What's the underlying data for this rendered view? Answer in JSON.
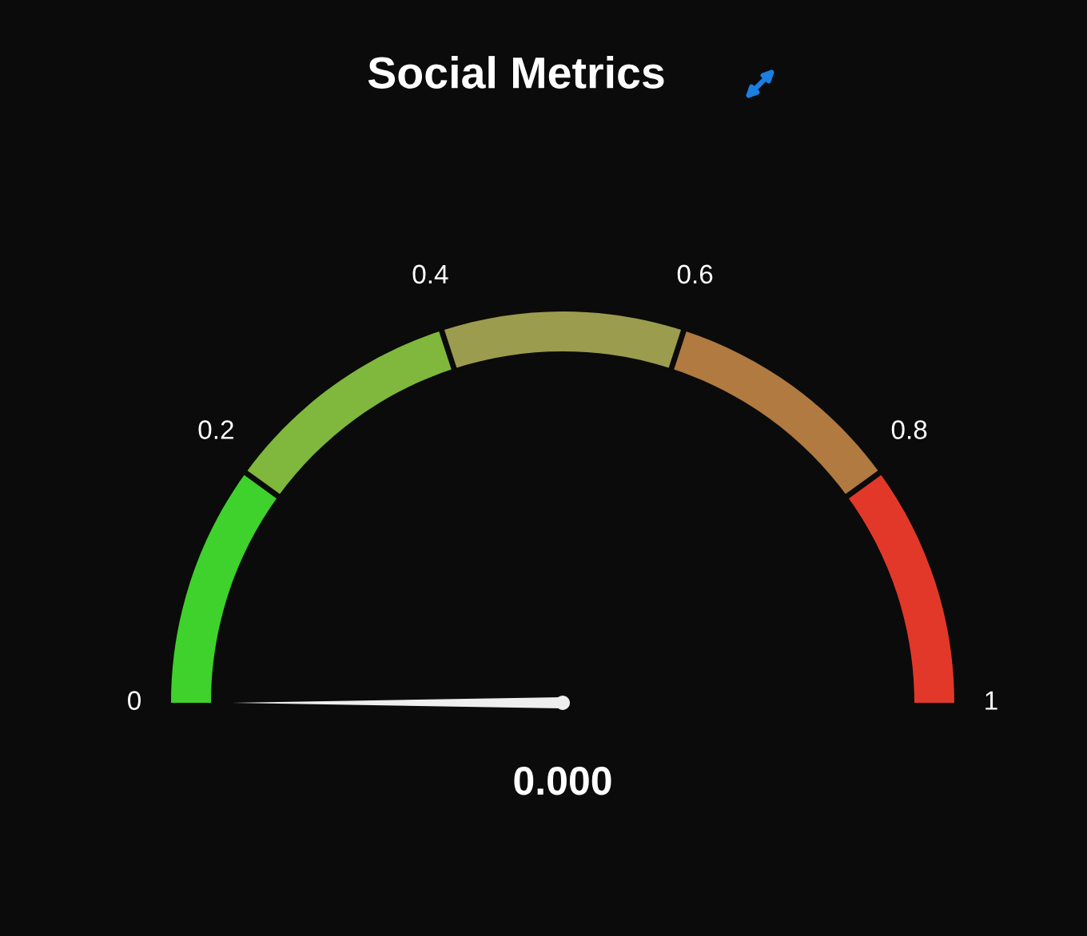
{
  "chart_data": {
    "type": "donut",
    "title": "Social Metrics",
    "categories": [
      "0",
      "0.2",
      "0.4",
      "0.6",
      "0.8"
    ],
    "values": [
      20,
      20,
      20,
      20,
      20
    ],
    "colors": [
      "#3fd12c",
      "#7fb83c",
      "#9c9c4e",
      "#b07a40",
      "#e2382a"
    ],
    "needle": "0",
    "annotations": [
      "1",
      "0.000"
    ]
  }
}
